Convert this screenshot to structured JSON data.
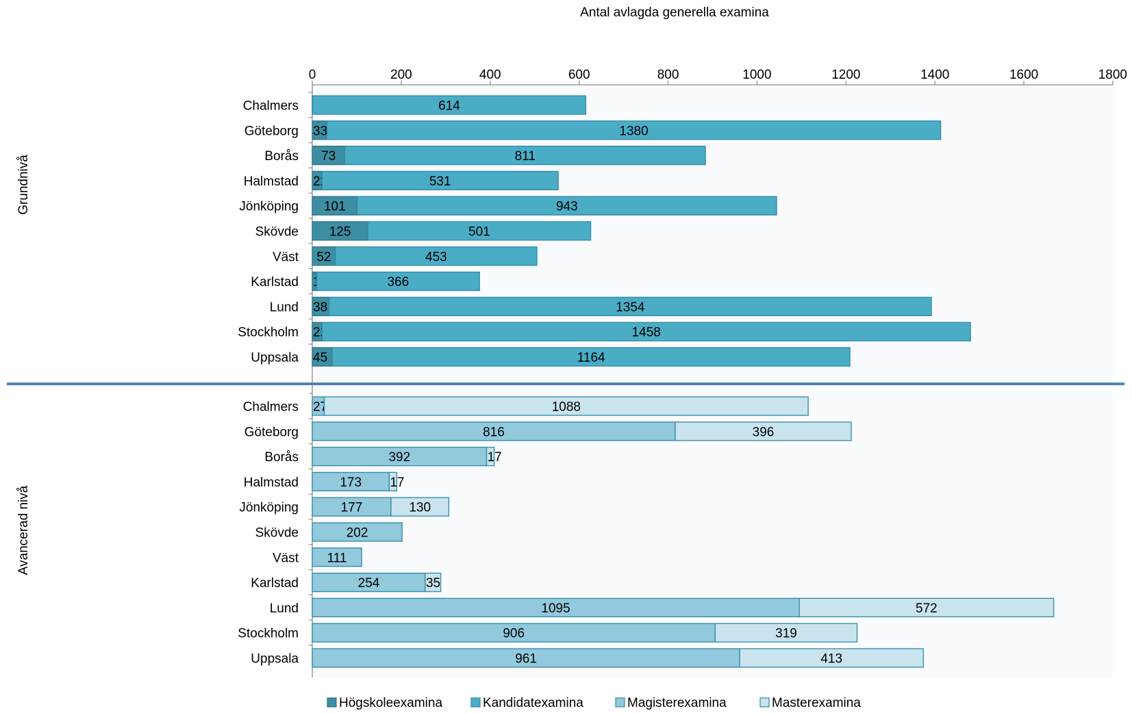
{
  "chart_data": {
    "type": "bar",
    "orientation": "horizontal",
    "stacked": true,
    "title": "Antal avlagda generella examina",
    "xlim": [
      0,
      1800
    ],
    "xticks": [
      0,
      200,
      400,
      600,
      800,
      1000,
      1200,
      1400,
      1600,
      1800
    ],
    "legend_position": "bottom",
    "colors": {
      "Högskoleexamina": "#3d8ea3",
      "Kandidatexamina": "#4bacc6",
      "Magisterexamina": "#92c9dc",
      "Masterexamina": "#c9e4ee",
      "separator": "#4f81bd"
    },
    "legend": [
      "Högskoleexamina",
      "Kandidatexamina",
      "Magisterexamina",
      "Masterexamina"
    ],
    "groups": [
      {
        "label": "Grundnivå",
        "categories": [
          "Chalmers",
          "Göteborg",
          "Borås",
          "Halmstad",
          "Jönköping",
          "Skövde",
          "Väst",
          "Karlstad",
          "Lund",
          "Stockholm",
          "Uppsala"
        ],
        "series": [
          {
            "name": "Högskoleexamina",
            "values": [
              1,
              33,
              73,
              22,
              101,
              125,
              52,
              10,
              38,
              22,
              45
            ]
          },
          {
            "name": "Kandidatexamina",
            "values": [
              614,
              1380,
              811,
              531,
              943,
              501,
              453,
              366,
              1354,
              1458,
              1164
            ]
          }
        ]
      },
      {
        "label": "Avancerad nivå",
        "categories": [
          "Chalmers",
          "Göteborg",
          "Borås",
          "Halmstad",
          "Jönköping",
          "Skövde",
          "Väst",
          "Karlstad",
          "Lund",
          "Stockholm",
          "Uppsala"
        ],
        "series": [
          {
            "name": "Magisterexamina",
            "values": [
              27,
              816,
              392,
              173,
              177,
              202,
              111,
              254,
              1095,
              906,
              961
            ]
          },
          {
            "name": "Masterexamina",
            "values": [
              1088,
              396,
              17,
              17,
              130,
              0,
              0,
              35,
              572,
              319,
              413
            ]
          }
        ]
      }
    ]
  }
}
